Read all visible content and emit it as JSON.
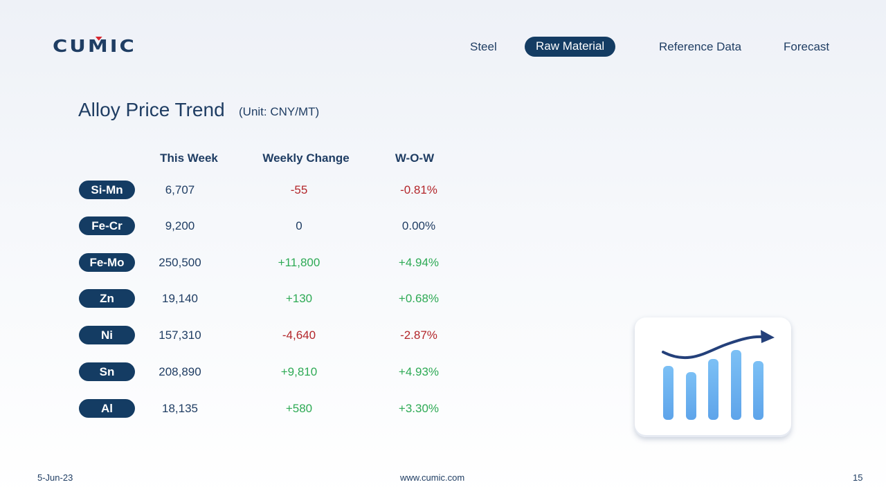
{
  "logo": "CUMIC",
  "nav": {
    "items": [
      {
        "label": "Steel",
        "active": false
      },
      {
        "label": "Raw Material",
        "active": true
      },
      {
        "label": "Reference Data",
        "active": false
      },
      {
        "label": "Forecast",
        "active": false
      }
    ]
  },
  "page": {
    "title": "Alloy Price Trend",
    "unit": "(Unit: CNY/MT)"
  },
  "table": {
    "headers": [
      "This Week",
      "Weekly Change",
      "W-O-W"
    ],
    "rows": [
      {
        "name": "Si-Mn",
        "this_week": "6,707",
        "weekly_change": "-55",
        "wow": "-0.81%"
      },
      {
        "name": "Fe-Cr",
        "this_week": "9,200",
        "weekly_change": "0",
        "wow": "0.00%"
      },
      {
        "name": "Fe-Mo",
        "this_week": "250,500",
        "weekly_change": "+11,800",
        "wow": "+4.94%"
      },
      {
        "name": "Zn",
        "this_week": "19,140",
        "weekly_change": "+130",
        "wow": "+0.68%"
      },
      {
        "name": "Ni",
        "this_week": "157,310",
        "weekly_change": "-4,640",
        "wow": "-2.87%"
      },
      {
        "name": "Sn",
        "this_week": "208,890",
        "weekly_change": "+9,810",
        "wow": "+4.93%"
      },
      {
        "name": "Al",
        "this_week": "18,135",
        "weekly_change": "+580",
        "wow": "+3.30%"
      }
    ]
  },
  "colors": {
    "navy": "#143c63",
    "negative": "#b3262a",
    "positive": "#2eaa55",
    "bar": "#6fb4f0",
    "arrow": "#24407a"
  },
  "illustration": {
    "icon": "chart-growth-icon"
  },
  "footer": {
    "date": "5-Jun-23",
    "website": "www.cumic.com",
    "page_number": "15"
  }
}
